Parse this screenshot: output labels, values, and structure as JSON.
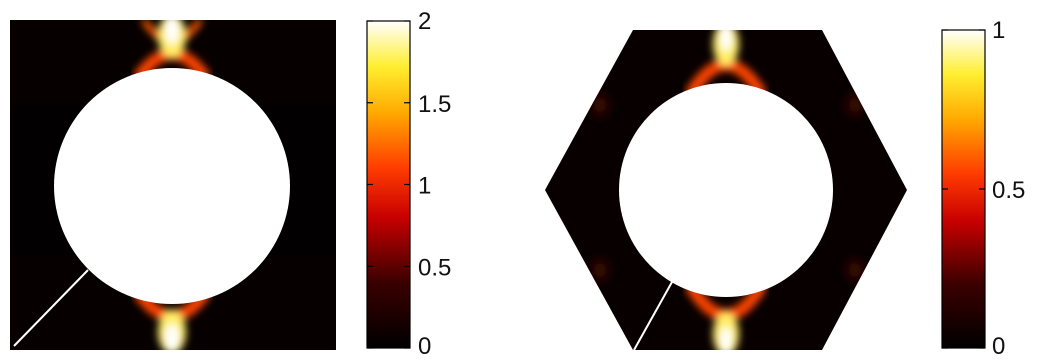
{
  "panels": [
    {
      "shape": "square",
      "colorbar": {
        "ticks": [
          "2",
          "1.5",
          "1",
          "0.5",
          "0"
        ],
        "max": 2,
        "min": 0
      }
    },
    {
      "shape": "hexagon",
      "colorbar": {
        "ticks": [
          "1",
          "0.5",
          "0"
        ],
        "max": 1,
        "min": 0
      }
    }
  ],
  "colormap": "hot",
  "colors": {
    "background": "#ffffff",
    "field_low": "#000000",
    "hole": "#ffffff",
    "crack": "#ffffff"
  }
}
